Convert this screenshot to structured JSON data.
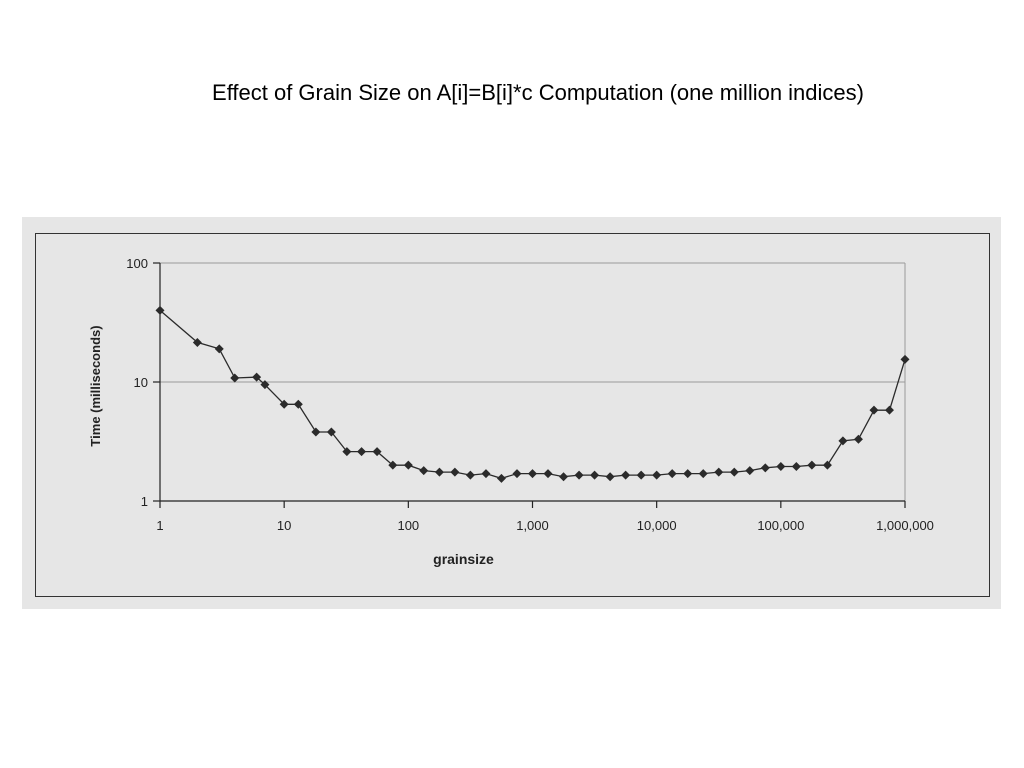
{
  "slide": {
    "title": "Effect of Grain Size on A[i]=B[i]*c Computation (one million indices)"
  },
  "colors": {
    "panel_background": "#e6e6e6",
    "series_line": "#2b2b2b",
    "gridline": "#9a9a9a"
  },
  "chart_data": {
    "type": "line",
    "title": "",
    "xlabel": "grainsize",
    "ylabel": "Time (milliseconds)",
    "xscale": "log",
    "yscale": "log",
    "xlim": [
      1,
      1000000
    ],
    "ylim": [
      1,
      100
    ],
    "grid": "horizontal major",
    "legend": "none",
    "x_ticks": [
      1,
      10,
      100,
      1000,
      10000,
      100000,
      1000000
    ],
    "x_tick_labels": [
      "1",
      "10",
      "100",
      "1,000",
      "10,000",
      "100,000",
      "1,000,000"
    ],
    "y_ticks": [
      1,
      10,
      100
    ],
    "y_tick_labels": [
      "1",
      "10",
      "100"
    ],
    "marker": "diamond",
    "series": [
      {
        "x": [
          1,
          2,
          3,
          4,
          6,
          7,
          10,
          13,
          18,
          24,
          32,
          42,
          56,
          75,
          100,
          133,
          178,
          237,
          316,
          422,
          562,
          750,
          1000,
          1333,
          1778,
          2371,
          3162,
          4217,
          5623,
          7499,
          10000,
          13335,
          17783,
          23714,
          31623,
          42170,
          56234,
          74989,
          100000,
          133352,
          177828,
          237137,
          316228,
          421697,
          562341,
          749894,
          1000000
        ],
        "values": [
          40,
          21.5,
          19,
          10.8,
          11,
          9.5,
          6.5,
          6.5,
          3.8,
          3.8,
          2.6,
          2.6,
          2.6,
          2.0,
          2.0,
          1.8,
          1.75,
          1.75,
          1.65,
          1.7,
          1.55,
          1.7,
          1.7,
          1.7,
          1.6,
          1.65,
          1.65,
          1.6,
          1.65,
          1.65,
          1.65,
          1.7,
          1.7,
          1.7,
          1.75,
          1.75,
          1.8,
          1.9,
          1.95,
          1.95,
          2.0,
          2.0,
          3.2,
          3.3,
          5.8,
          5.8,
          15.5
        ]
      }
    ]
  }
}
